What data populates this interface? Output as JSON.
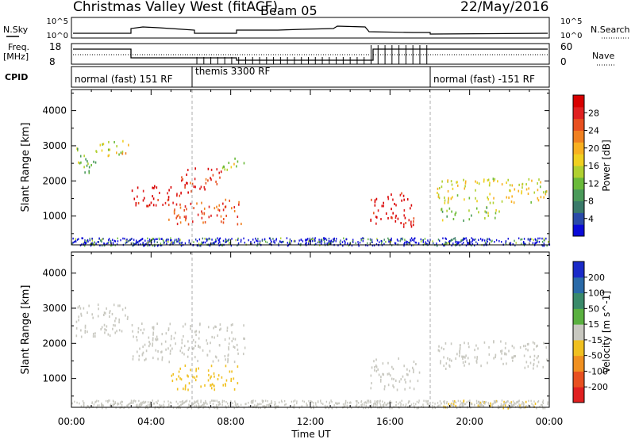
{
  "header": {
    "radar": "Christmas Valley West (fitACF)",
    "beam": "Beam 05",
    "date": "22/May/2016"
  },
  "top_panels": {
    "nsky_label": "N.Sky",
    "nsky_ticks": [
      "10^5",
      "10^0"
    ],
    "nsearch_label": "N.Search",
    "nsearch_ticks": [
      "10^5",
      "10^0"
    ],
    "freq_label": "Freq.",
    "freq_unit": "[MHz]",
    "freq_ticks": [
      "18",
      "8"
    ],
    "nave_label": "Nave",
    "nave_ticks": [
      "60",
      "0"
    ],
    "cpid_label": "CPID",
    "cpid_segments": [
      {
        "label": "normal (fast) 151 RF",
        "start": 0,
        "end": 6
      },
      {
        "label": "themis 3300 RF",
        "start": 6,
        "end": 18
      },
      {
        "label": "normal (fast) -151 RF",
        "start": 18,
        "end": 24
      }
    ]
  },
  "panels": {
    "ylabel": "Slant Range [km]",
    "yticks": [
      "4000",
      "3000",
      "2000",
      "1000"
    ],
    "xticks": [
      "00:00",
      "04:00",
      "08:00",
      "12:00",
      "16:00",
      "20:00",
      "00:00"
    ],
    "xlabel": "Time UT"
  },
  "power_colorbar": {
    "label": "Power [dB]",
    "ticks": [
      "28",
      "24",
      "20",
      "16",
      "12",
      "8",
      "4"
    ],
    "colors": [
      "#0a0ad8",
      "#2a4aa8",
      "#3a7a6a",
      "#4a9a5a",
      "#6aba3a",
      "#b0d030",
      "#f0d020",
      "#f8b020",
      "#f08020",
      "#e85020",
      "#e02020",
      "#d80000"
    ]
  },
  "velocity_colorbar": {
    "label": "Velocity [m s^-1]",
    "ticks": [
      "200",
      "100",
      "50",
      "15",
      "-15",
      "-50",
      "-100",
      "-200"
    ],
    "colors": [
      "#1a2ac8",
      "#2a6aa8",
      "#3a8a6a",
      "#5ab040",
      "#c8c8c0",
      "#f0c020",
      "#f09020",
      "#e85020",
      "#e02020"
    ]
  },
  "chart_data": {
    "type": "heatmap",
    "title": "Christmas Valley West (fitACF) Beam 05 22/May/2016",
    "xlabel": "Time UT",
    "ylabel": "Slant Range [km]",
    "xlim": [
      0,
      24
    ],
    "ylim": [
      180,
      4600
    ],
    "power_regions": [
      {
        "t0": 0.2,
        "t1": 1.2,
        "r0": 2200,
        "r1": 3000,
        "level": 12
      },
      {
        "t0": 1.2,
        "t1": 2.6,
        "r0": 2700,
        "r1": 3200,
        "level": 14
      },
      {
        "t0": 2.5,
        "t1": 2.9,
        "r0": 2800,
        "r1": 3100,
        "level": 22
      },
      {
        "t0": 3.0,
        "t1": 5.5,
        "r0": 1300,
        "r1": 1900,
        "level": 28
      },
      {
        "t0": 5.5,
        "t1": 7.5,
        "r0": 1700,
        "r1": 2400,
        "level": 26
      },
      {
        "t0": 7.5,
        "t1": 8.7,
        "r0": 2300,
        "r1": 2700,
        "level": 14
      },
      {
        "t0": 4.8,
        "t1": 8.5,
        "r0": 800,
        "r1": 1500,
        "level": 24
      },
      {
        "t0": 15.0,
        "t1": 17.2,
        "r0": 700,
        "r1": 1700,
        "level": 28
      },
      {
        "t0": 18.3,
        "t1": 23.9,
        "r0": 1400,
        "r1": 2100,
        "level": 16
      },
      {
        "t0": 18.5,
        "t1": 21.5,
        "r0": 900,
        "r1": 1300,
        "level": 12
      }
    ],
    "velocity_regions": [
      {
        "t0": 0.2,
        "t1": 2.8,
        "r0": 2200,
        "r1": 3200,
        "level": 0
      },
      {
        "t0": 3.0,
        "t1": 8.7,
        "r0": 1500,
        "r1": 2600,
        "level": 0
      },
      {
        "t0": 5.0,
        "t1": 8.5,
        "r0": 700,
        "r1": 1400,
        "level": -50
      },
      {
        "t0": 15.0,
        "t1": 17.5,
        "r0": 700,
        "r1": 1600,
        "level": 0
      },
      {
        "t0": 18.3,
        "t1": 23.9,
        "r0": 1300,
        "r1": 2100,
        "level": 0
      },
      {
        "t0": 18.5,
        "t1": 23.9,
        "r0": 180,
        "r1": 400,
        "level": -50
      }
    ]
  }
}
